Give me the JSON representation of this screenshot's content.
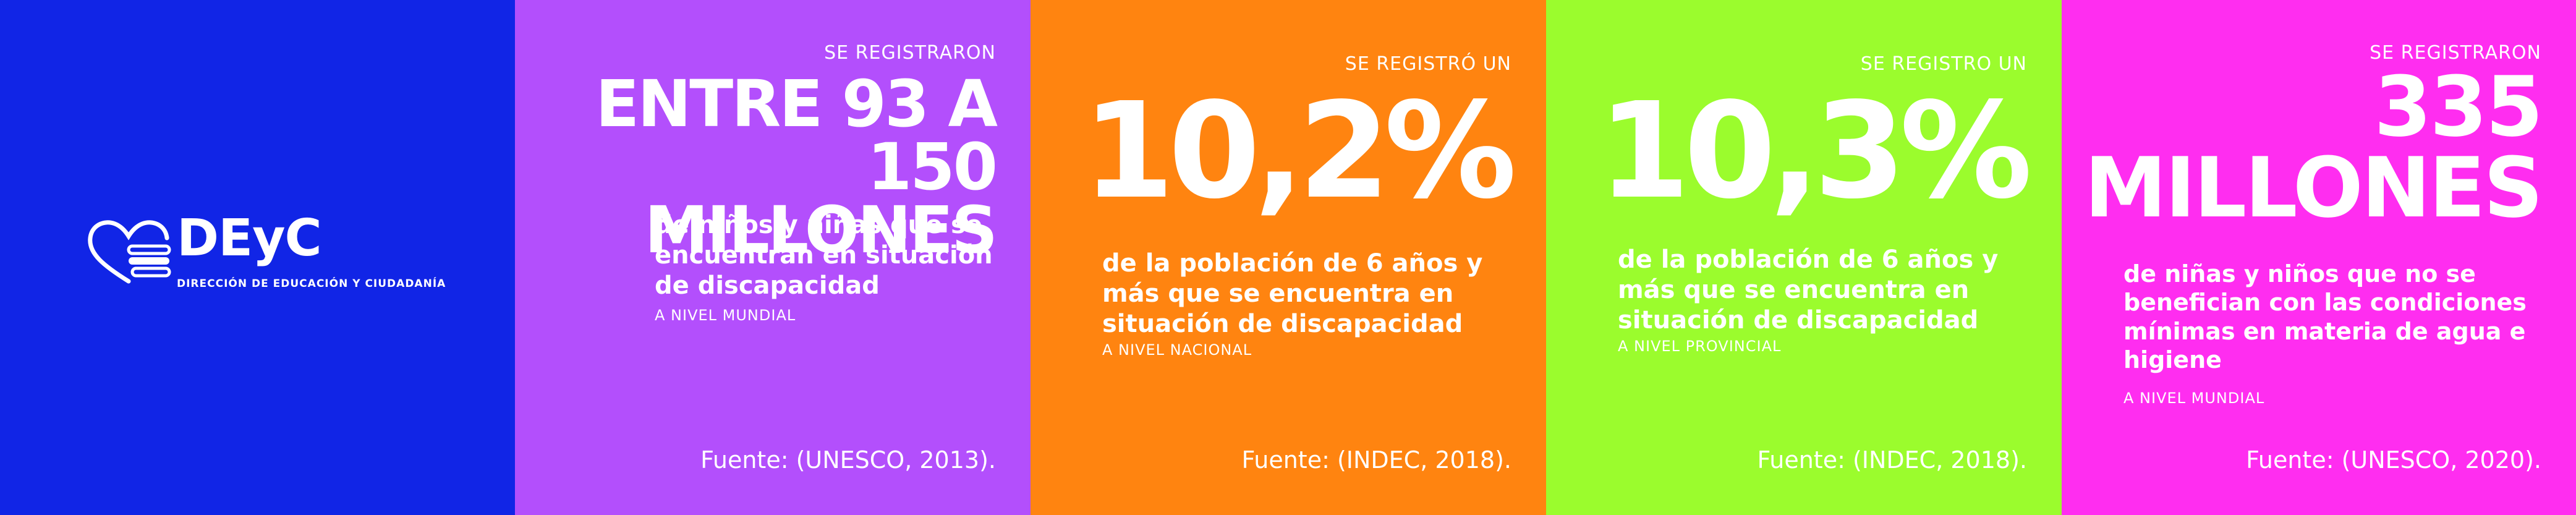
{
  "logo": {
    "title": "DEyC",
    "subtitle": "DIRECCIÓN DE EDUCACIÓN Y CIUDADANÍA",
    "icon": "heart-hand-icon"
  },
  "colors": {
    "background": "#1125e6",
    "panel_purple": "#b34ffc",
    "panel_orange": "#ff8410",
    "panel_green": "#9bfc2d",
    "panel_magenta": "#ff2df0",
    "text": "#ffffff"
  },
  "panels": [
    {
      "label": "SE REGISTRARON",
      "headline_line1": "ENTRE 93 A",
      "headline_line2": "150 MILLONES",
      "description_lines": [
        "de niños y niñas que se",
        "encuentran en situación",
        "de discapacidad"
      ],
      "scope": "A NIVEL MUNDIAL",
      "source": "Fuente: (UNESCO, 2013)."
    },
    {
      "label": "SE REGISTRÓ UN",
      "headline": "10,2%",
      "description_lines": [
        "de la población de 6 años y",
        "más que se encuentra en",
        "situación de discapacidad"
      ],
      "scope": "A NIVEL NACIONAL",
      "source": "Fuente: (INDEC, 2018)."
    },
    {
      "label": "SE REGISTRO UN",
      "headline": "10,3%",
      "description_lines": [
        "de la población de 6 años y",
        "más que se encuentra en",
        "situación de discapacidad"
      ],
      "scope": "A NIVEL PROVINCIAL",
      "source": "Fuente: (INDEC, 2018)."
    },
    {
      "label": "SE REGISTRARON",
      "headline_line1": "335",
      "headline_line2": "MILLONES",
      "description_lines": [
        "de niñas y niños que no se",
        "benefician con las condiciones",
        "mínimas en materia de agua e",
        "higiene"
      ],
      "scope": "A NIVEL MUNDIAL",
      "source": "Fuente: (UNESCO, 2020)."
    }
  ]
}
